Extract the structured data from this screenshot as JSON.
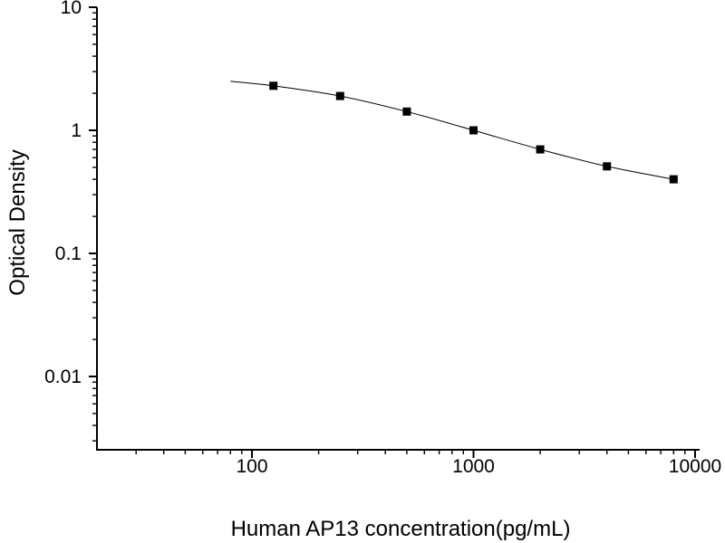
{
  "figure": {
    "background": "#ffffff",
    "description": "ELISA standard curve plot, log-log axes, black on white"
  },
  "chart_data": {
    "type": "scatter",
    "subtype": "log-log-standard-curve",
    "title": "",
    "xlabel": "Human AP13 concentration(pg/mL)",
    "ylabel": "Optical Density",
    "x": [
      125,
      250,
      500,
      1000,
      2000,
      4000,
      8000
    ],
    "y": [
      2.3,
      1.9,
      1.42,
      1.0,
      0.7,
      0.51,
      0.4
    ],
    "curve_start": {
      "x": 80,
      "y": 2.5
    },
    "xscale": "log",
    "yscale": "log",
    "xlim": [
      20,
      10500
    ],
    "ylim": [
      0.0025,
      10
    ],
    "x_major_ticks": [
      100,
      1000,
      10000
    ],
    "x_major_tick_labels": [
      "100",
      "1000",
      "10000"
    ],
    "y_major_ticks": [
      10,
      1,
      0.1,
      0.01
    ],
    "y_major_tick_labels": [
      "10",
      "1",
      "0.1",
      "0.01"
    ],
    "grid": false,
    "legend": false,
    "marker": "filled-square",
    "marker_size": 9,
    "colors": {
      "axis": "#000000",
      "line": "#000000",
      "marker": "#000000",
      "text": "#000000",
      "background": "#ffffff"
    }
  }
}
